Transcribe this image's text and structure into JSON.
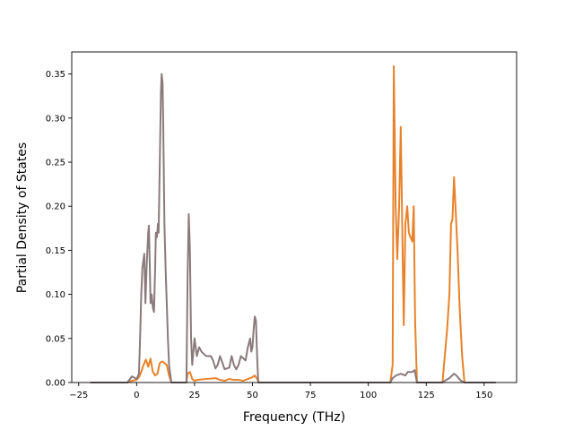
{
  "chart_data": {
    "type": "line",
    "title": "",
    "xlabel": "Frequency (THz)",
    "ylabel": "Partial Density of States",
    "xlim": [
      -28,
      164
    ],
    "ylim": [
      0,
      0.375
    ],
    "xticks": [
      -25,
      0,
      25,
      50,
      75,
      100,
      125,
      150
    ],
    "yticks": [
      0.0,
      0.05,
      0.1,
      0.15,
      0.2,
      0.25,
      0.3,
      0.35
    ],
    "xtick_labels": [
      "−25",
      "0",
      "25",
      "50",
      "75",
      "100",
      "125",
      "150"
    ],
    "ytick_labels": [
      "0.00",
      "0.05",
      "0.10",
      "0.15",
      "0.20",
      "0.25",
      "0.30",
      "0.35"
    ],
    "grid": false,
    "legend": "none",
    "series": [
      {
        "color": "#e8822a",
        "points": [
          [
            -20,
            0
          ],
          [
            -4,
            0
          ],
          [
            -2,
            0.002
          ],
          [
            0,
            0.003
          ],
          [
            1,
            0.006
          ],
          [
            2,
            0.012
          ],
          [
            3,
            0.02
          ],
          [
            4,
            0.026
          ],
          [
            5,
            0.018
          ],
          [
            6,
            0.027
          ],
          [
            7,
            0.012
          ],
          [
            8,
            0.008
          ],
          [
            9,
            0.01
          ],
          [
            10,
            0.022
          ],
          [
            11,
            0.024
          ],
          [
            12,
            0.022
          ],
          [
            13,
            0.02
          ],
          [
            14,
            0.008
          ],
          [
            15,
            0
          ],
          [
            21.5,
            0
          ],
          [
            22,
            0.01
          ],
          [
            23,
            0.012
          ],
          [
            24,
            0.004
          ],
          [
            25,
            0.002
          ],
          [
            26,
            0.003
          ],
          [
            30,
            0.004
          ],
          [
            34,
            0.005
          ],
          [
            36,
            0.003
          ],
          [
            38,
            0.002
          ],
          [
            40,
            0.004
          ],
          [
            42,
            0.003
          ],
          [
            44,
            0.003
          ],
          [
            46,
            0.002
          ],
          [
            48,
            0.004
          ],
          [
            50,
            0.006
          ],
          [
            51,
            0.008
          ],
          [
            52,
            0.004
          ],
          [
            53,
            0
          ],
          [
            109.5,
            0
          ],
          [
            110.5,
            0.02
          ],
          [
            111,
            0.359
          ],
          [
            111.8,
            0.2
          ],
          [
            112.5,
            0.14
          ],
          [
            113.3,
            0.2
          ],
          [
            114,
            0.29
          ],
          [
            114.8,
            0.15
          ],
          [
            115.3,
            0.065
          ],
          [
            116,
            0.18
          ],
          [
            116.8,
            0.2
          ],
          [
            117.5,
            0.17
          ],
          [
            118.2,
            0.165
          ],
          [
            119,
            0.16
          ],
          [
            119.6,
            0.2
          ],
          [
            120.2,
            0.07
          ],
          [
            121,
            0
          ],
          [
            132,
            0
          ],
          [
            133,
            0.03
          ],
          [
            134,
            0.06
          ],
          [
            135,
            0.1
          ],
          [
            135.7,
            0.18
          ],
          [
            136.3,
            0.185
          ],
          [
            137,
            0.233
          ],
          [
            137.8,
            0.19
          ],
          [
            138.5,
            0.15
          ],
          [
            139.5,
            0.08
          ],
          [
            140.5,
            0.03
          ],
          [
            141.5,
            0
          ],
          [
            155,
            0
          ]
        ]
      },
      {
        "color": "#8a7a7c",
        "points": [
          [
            -20,
            0
          ],
          [
            -4,
            0
          ],
          [
            -2,
            0.007
          ],
          [
            0,
            0.004
          ],
          [
            1,
            0.01
          ],
          [
            1.5,
            0.05
          ],
          [
            2,
            0.1
          ],
          [
            2.5,
            0.13
          ],
          [
            3,
            0.14
          ],
          [
            3.3,
            0.146
          ],
          [
            3.8,
            0.09
          ],
          [
            4.3,
            0.13
          ],
          [
            5,
            0.17
          ],
          [
            5.3,
            0.178
          ],
          [
            5.7,
            0.13
          ],
          [
            6,
            0.09
          ],
          [
            6.5,
            0.1
          ],
          [
            7,
            0.085
          ],
          [
            7.5,
            0.08
          ],
          [
            8,
            0.13
          ],
          [
            8.3,
            0.17
          ],
          [
            8.8,
            0.165
          ],
          [
            9.2,
            0.18
          ],
          [
            9.5,
            0.17
          ],
          [
            10,
            0.25
          ],
          [
            10.5,
            0.33
          ],
          [
            10.8,
            0.35
          ],
          [
            11.2,
            0.34
          ],
          [
            11.5,
            0.29
          ],
          [
            12,
            0.18
          ],
          [
            12.5,
            0.13
          ],
          [
            13,
            0.09
          ],
          [
            13.5,
            0.05
          ],
          [
            14,
            0.02
          ],
          [
            14.5,
            0.01
          ],
          [
            15,
            0
          ],
          [
            21.5,
            0
          ],
          [
            22,
            0.12
          ],
          [
            22.5,
            0.191
          ],
          [
            23,
            0.15
          ],
          [
            23.5,
            0.05
          ],
          [
            24,
            0.02
          ],
          [
            25,
            0.05
          ],
          [
            26,
            0.03
          ],
          [
            27,
            0.04
          ],
          [
            28,
            0.035
          ],
          [
            30,
            0.03
          ],
          [
            32,
            0.03
          ],
          [
            33,
            0.025
          ],
          [
            34,
            0.016
          ],
          [
            35,
            0.02
          ],
          [
            36,
            0.03
          ],
          [
            38,
            0.015
          ],
          [
            40,
            0.017
          ],
          [
            41,
            0.03
          ],
          [
            42,
            0.02
          ],
          [
            43,
            0.015
          ],
          [
            44,
            0.02
          ],
          [
            45,
            0.03
          ],
          [
            47,
            0.025
          ],
          [
            48,
            0.04
          ],
          [
            49,
            0.05
          ],
          [
            49.5,
            0.035
          ],
          [
            50,
            0.04
          ],
          [
            50.5,
            0.06
          ],
          [
            51,
            0.075
          ],
          [
            51.5,
            0.07
          ],
          [
            52,
            0.03
          ],
          [
            52.5,
            0
          ],
          [
            109.5,
            0
          ],
          [
            110.5,
            0.005
          ],
          [
            112,
            0.008
          ],
          [
            114,
            0.01
          ],
          [
            116,
            0.008
          ],
          [
            117,
            0.012
          ],
          [
            119,
            0.012
          ],
          [
            120,
            0.014
          ],
          [
            121,
            0
          ],
          [
            132,
            0
          ],
          [
            133,
            0.002
          ],
          [
            135,
            0.005
          ],
          [
            137,
            0.01
          ],
          [
            138,
            0.008
          ],
          [
            140,
            0.002
          ],
          [
            141.5,
            0
          ],
          [
            155,
            0
          ]
        ]
      }
    ]
  }
}
